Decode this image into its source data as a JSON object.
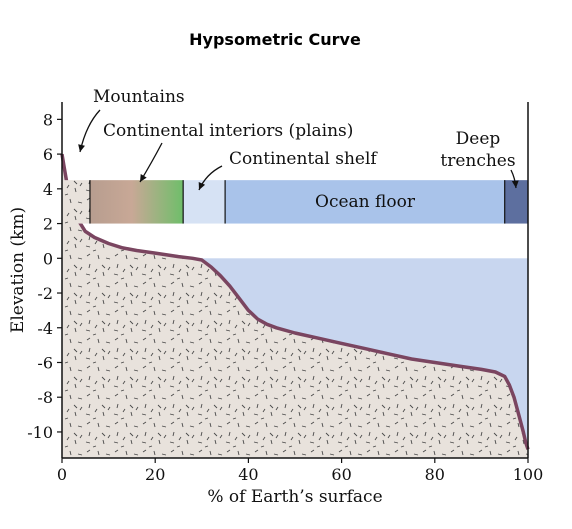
{
  "chart_data": {
    "type": "area",
    "title": "Hypsometric Curve",
    "xlabel": "% of Earth’s surface",
    "ylabel": "Elevation (km)",
    "xlim": [
      0,
      100
    ],
    "ylim": [
      -11.5,
      9
    ],
    "x_ticks": [
      0,
      20,
      40,
      60,
      80,
      100
    ],
    "y_ticks": [
      8,
      6,
      4,
      2,
      0,
      -2,
      -4,
      -6,
      -8,
      -10
    ],
    "grid": false,
    "curve": {
      "x": [
        0,
        0.5,
        1,
        2,
        3,
        5,
        7,
        10,
        13,
        16,
        20,
        25,
        28,
        30,
        32,
        34,
        36,
        38,
        40,
        42,
        44,
        46,
        50,
        55,
        60,
        65,
        70,
        75,
        80,
        85,
        90,
        93,
        95,
        96,
        97,
        98,
        99,
        99.5,
        100
      ],
      "y": [
        6.0,
        5.2,
        4.4,
        3.3,
        2.4,
        1.55,
        1.2,
        0.85,
        0.6,
        0.45,
        0.3,
        0.1,
        0.0,
        -0.1,
        -0.5,
        -1.0,
        -1.6,
        -2.3,
        -3.0,
        -3.5,
        -3.8,
        -4.0,
        -4.3,
        -4.6,
        -4.9,
        -5.2,
        -5.5,
        -5.8,
        -6.0,
        -6.2,
        -6.4,
        -6.55,
        -6.8,
        -7.3,
        -8.0,
        -9.0,
        -10.0,
        -10.6,
        -11.0
      ]
    },
    "sea_level": 0,
    "regions": [
      {
        "name": "Mountains",
        "x_start": 0,
        "x_end": 6
      },
      {
        "name": "Continental interiors (plains)",
        "x_start": 6,
        "x_end": 26
      },
      {
        "name": "Continental shelf",
        "x_start": 26,
        "x_end": 35
      },
      {
        "name": "Ocean floor",
        "x_start": 35,
        "x_end": 95
      },
      {
        "name": "Deep trenches",
        "x_start": 95,
        "x_end": 100
      }
    ],
    "annotations": {
      "mountains": "Mountains",
      "interiors": "Continental interiors (plains)",
      "shelf": "Continental shelf",
      "ocean_floor": "Ocean floor",
      "trenches_line1": "Deep",
      "trenches_line2": "trenches"
    },
    "colors": {
      "curve": "#7a4560",
      "land_fill": "#e8e2dc",
      "ocean_fill": "#c8d6ef",
      "ocean_floor_band": "#a9c3ea",
      "shelf_band": "#d6e2f4",
      "trench_band": "#5d6f9f",
      "interiors_band_start": "#b79d8f",
      "interiors_band_end": "#6fbe6a"
    }
  }
}
